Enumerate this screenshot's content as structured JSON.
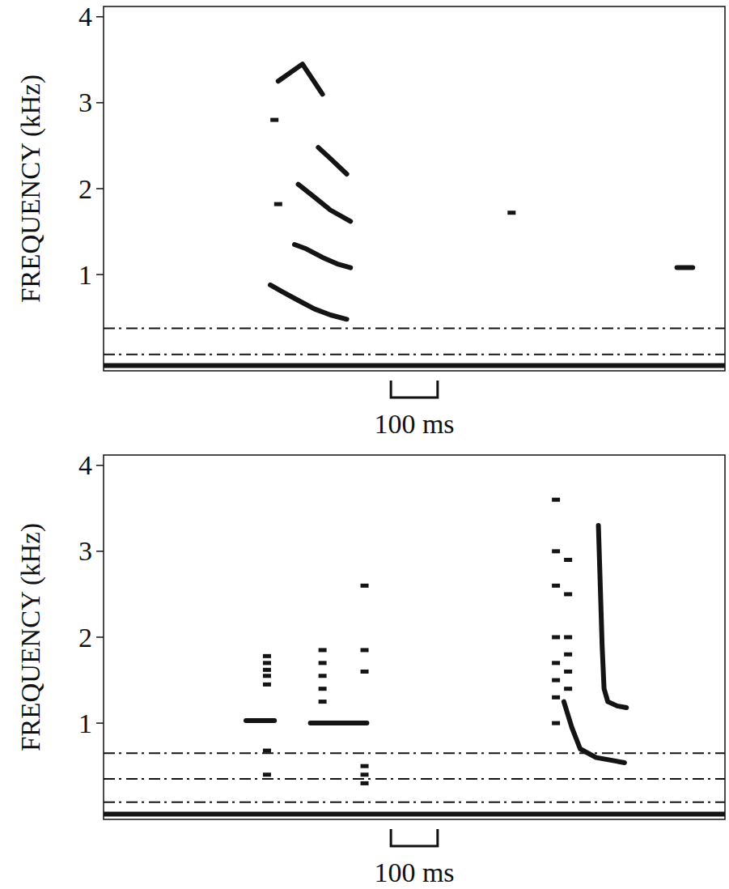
{
  "chart_data": [
    {
      "type": "spectrogram",
      "y_label": "FREQUENCY (kHz)",
      "xlim": [
        0,
        1331
      ],
      "ylim": [
        -0.12,
        4.12
      ],
      "yticks": [
        1,
        2,
        3,
        4
      ],
      "tick_labels": "y",
      "scale_bar": {
        "value": 100,
        "label": "100 ms"
      },
      "series": [
        {
          "type": "line",
          "line_style": "solid",
          "color": "#141414",
          "x": [
            357,
            383,
            417,
            452,
            486,
            521
          ],
          "values": [
            0.88,
            0.8,
            0.7,
            0.6,
            0.53,
            0.48
          ]
        },
        {
          "type": "line",
          "line_style": "solid",
          "color": "#141414",
          "x": [
            409,
            434,
            469,
            503,
            529
          ],
          "values": [
            1.35,
            1.3,
            1.2,
            1.12,
            1.08
          ]
        },
        {
          "type": "scatter",
          "marker": "dot",
          "color": "#141414",
          "x": [
            374,
            366,
            874
          ],
          "values": [
            1.82,
            2.8,
            1.72
          ]
        },
        {
          "type": "line",
          "line_style": "solid",
          "color": "#141414",
          "x": [
            417,
            452,
            486,
            529
          ],
          "values": [
            2.05,
            1.9,
            1.75,
            1.62
          ]
        },
        {
          "type": "line",
          "line_style": "solid",
          "color": "#141414",
          "x": [
            460,
            486,
            521
          ],
          "values": [
            2.48,
            2.35,
            2.17
          ]
        },
        {
          "type": "line",
          "line_style": "solid",
          "color": "#141414",
          "x": [
            374,
            426,
            469
          ],
          "values": [
            3.25,
            3.45,
            3.1
          ]
        },
        {
          "type": "line",
          "line_style": "solid",
          "color": "#141414",
          "x": [
            1228,
            1262
          ],
          "values": [
            1.08,
            1.08
          ]
        },
        {
          "type": "line",
          "line_style": "dotted",
          "color": "#141414",
          "x": [
            0,
            1331
          ],
          "values": [
            0.375,
            0.375
          ]
        },
        {
          "type": "line",
          "line_style": "dotted",
          "color": "#141414",
          "x": [
            0,
            1331
          ],
          "values": [
            0.07,
            0.07
          ]
        },
        {
          "type": "line",
          "line_style": "solid",
          "color": "#141414",
          "x": [
            0,
            1331
          ],
          "values": [
            -0.06,
            -0.06
          ]
        }
      ]
    },
    {
      "type": "spectrogram",
      "y_label": "FREQUENCY (kHz)",
      "xlim": [
        0,
        1331
      ],
      "ylim": [
        -0.12,
        4.12
      ],
      "yticks": [
        1,
        2,
        3,
        4
      ],
      "tick_labels": "y",
      "scale_bar": {
        "value": 100,
        "label": "100 ms"
      },
      "series": [
        {
          "type": "scatter",
          "marker": "dot",
          "color": "#141414",
          "x": [
            350,
            350,
            350,
            350,
            350,
            350,
            350
          ],
          "values": [
            1.45,
            1.55,
            1.62,
            1.7,
            1.78,
            0.68,
            0.4
          ]
        },
        {
          "type": "line",
          "line_style": "solid",
          "color": "#141414",
          "x": [
            305,
            366
          ],
          "values": [
            1.03,
            1.03
          ]
        },
        {
          "type": "line",
          "line_style": "solid",
          "color": "#141414",
          "x": [
            443,
            564
          ],
          "values": [
            1.0,
            1.0
          ]
        },
        {
          "type": "scatter",
          "marker": "dot",
          "color": "#141414",
          "x": [
            469,
            469,
            469,
            469,
            469
          ],
          "values": [
            1.25,
            1.4,
            1.55,
            1.7,
            1.85
          ]
        },
        {
          "type": "scatter",
          "marker": "dot",
          "color": "#141414",
          "x": [
            559,
            559,
            559,
            559,
            559,
            559
          ],
          "values": [
            0.3,
            0.4,
            0.5,
            1.6,
            1.85,
            2.6
          ]
        },
        {
          "type": "scatter",
          "marker": "dot",
          "color": "#141414",
          "x": [
            969,
            969,
            969,
            969,
            969,
            969,
            969,
            969
          ],
          "values": [
            1.0,
            1.3,
            1.5,
            1.7,
            2.0,
            2.6,
            3.0,
            3.6
          ]
        },
        {
          "type": "scatter",
          "marker": "dot",
          "color": "#141414",
          "x": [
            995,
            995,
            995,
            995,
            995,
            995
          ],
          "values": [
            1.4,
            1.6,
            1.8,
            2.0,
            2.5,
            2.9
          ]
        },
        {
          "type": "line",
          "line_style": "solid",
          "color": "#141414",
          "x": [
            986,
            1003,
            1021,
            1055,
            1116
          ],
          "values": [
            1.25,
            0.95,
            0.7,
            0.6,
            0.54
          ]
        },
        {
          "type": "line",
          "line_style": "solid",
          "color": "#141414",
          "x": [
            1060,
            1064,
            1068,
            1072,
            1080,
            1100,
            1120
          ],
          "values": [
            3.3,
            2.6,
            1.9,
            1.4,
            1.25,
            1.2,
            1.18
          ]
        },
        {
          "type": "line",
          "line_style": "dotted",
          "color": "#141414",
          "x": [
            0,
            1331
          ],
          "values": [
            0.65,
            0.65
          ]
        },
        {
          "type": "line",
          "line_style": "dotted",
          "color": "#141414",
          "x": [
            0,
            1331
          ],
          "values": [
            0.35,
            0.35
          ]
        },
        {
          "type": "line",
          "line_style": "dotted",
          "color": "#141414",
          "x": [
            0,
            1331
          ],
          "values": [
            0.08,
            0.08
          ]
        },
        {
          "type": "line",
          "line_style": "solid",
          "color": "#141414",
          "x": [
            0,
            1331
          ],
          "values": [
            -0.06,
            -0.06
          ]
        }
      ]
    }
  ]
}
